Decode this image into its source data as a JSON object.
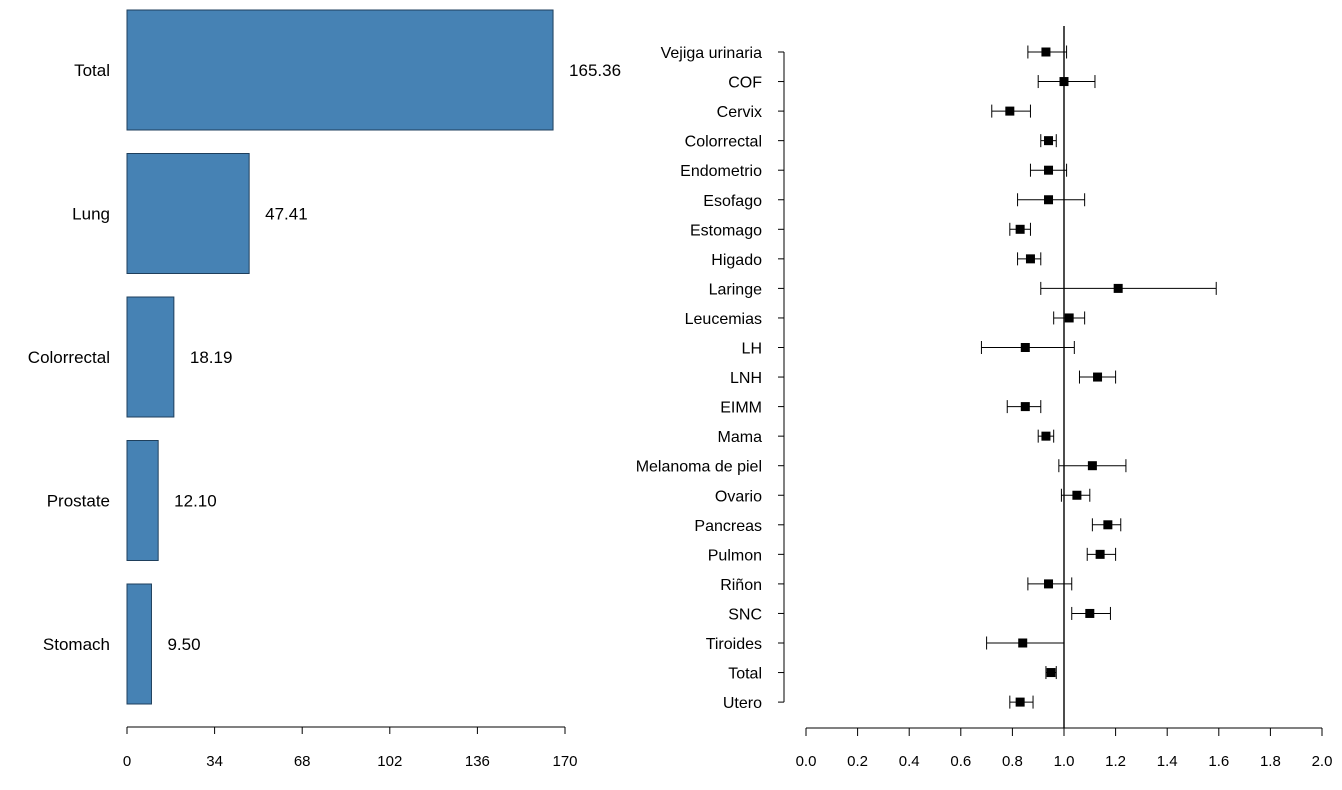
{
  "chart_data": [
    {
      "type": "bar",
      "orientation": "horizontal",
      "categories": [
        "Total",
        "Lung",
        "Colorrectal",
        "Prostate",
        "Stomach"
      ],
      "values": [
        165.36,
        47.41,
        18.19,
        12.1,
        9.5
      ],
      "value_labels": [
        "165.36",
        "47.41",
        "18.19",
        "12.10",
        "9.50"
      ],
      "xlim": [
        0,
        170
      ],
      "x_ticks": [
        "0",
        "34",
        "68",
        "102",
        "136",
        "170"
      ],
      "title": "",
      "xlabel": "",
      "ylabel": "",
      "bar_color": "#4682b4",
      "bar_edge_color": "#1f3f5c",
      "grid": false
    },
    {
      "type": "scatter",
      "subtype": "forest",
      "categories": [
        "Vejiga urinaria",
        "COF",
        "Cervix",
        "Colorrectal",
        "Endometrio",
        "Esofago",
        "Estomago",
        "Higado",
        "Laringe",
        "Leucemias",
        "LH",
        "LNH",
        "EIMM",
        "Mama",
        "Melanoma de piel",
        "Ovario",
        "Pancreas",
        "Pulmon",
        "Riñon",
        "SNC",
        "Tiroides",
        "Total",
        "Utero"
      ],
      "estimates": [
        0.93,
        1.0,
        0.79,
        0.94,
        0.94,
        0.94,
        0.83,
        0.87,
        1.21,
        1.02,
        0.85,
        1.13,
        0.85,
        0.93,
        1.11,
        1.05,
        1.17,
        1.14,
        0.94,
        1.1,
        0.84,
        0.95,
        0.83
      ],
      "lower": [
        0.86,
        0.9,
        0.72,
        0.91,
        0.87,
        0.82,
        0.79,
        0.82,
        0.91,
        0.96,
        0.68,
        1.06,
        0.78,
        0.9,
        0.98,
        0.99,
        1.11,
        1.09,
        0.86,
        1.03,
        0.7,
        0.93,
        0.79
      ],
      "upper": [
        1.01,
        1.12,
        0.87,
        0.97,
        1.01,
        1.08,
        0.87,
        0.91,
        1.59,
        1.08,
        1.04,
        1.2,
        0.91,
        0.96,
        1.24,
        1.1,
        1.22,
        1.2,
        1.03,
        1.18,
        1.0,
        0.97,
        0.88
      ],
      "reference_line": 1.0,
      "xlim": [
        0,
        2.0
      ],
      "x_ticks": [
        "0.0",
        "0.2",
        "0.4",
        "0.6",
        "0.8",
        "1.0",
        "1.2",
        "1.4",
        "1.6",
        "1.8",
        "2.0"
      ],
      "title": "",
      "xlabel": "",
      "ylabel": "",
      "marker_color": "#000000",
      "grid": false
    }
  ]
}
